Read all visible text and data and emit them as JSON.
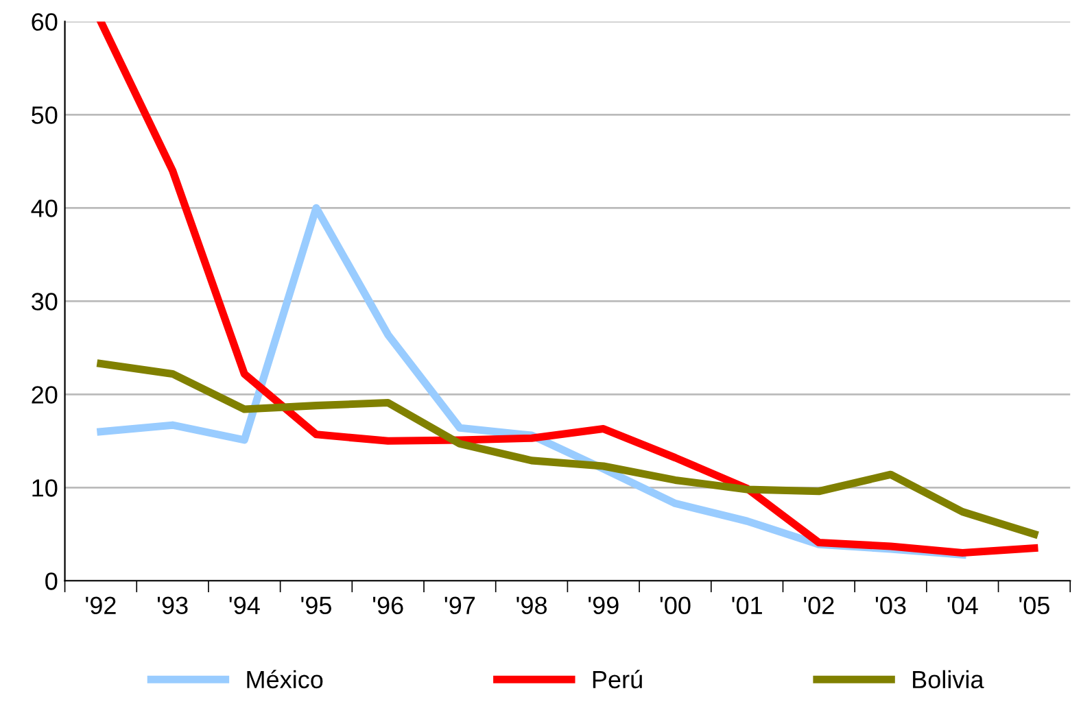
{
  "chart_data": {
    "type": "line",
    "categories": [
      "'92",
      "'93",
      "'94",
      "'95",
      "'96",
      "'97",
      "'98",
      "'99",
      "'00",
      "'01",
      "'02",
      "'03",
      "'04",
      "'05"
    ],
    "series": [
      {
        "name": "México",
        "color": "#99ccff",
        "values": [
          16.0,
          16.7,
          15.1,
          40.0,
          26.4,
          16.4,
          15.6,
          12.0,
          8.3,
          6.4,
          3.9,
          3.4,
          2.8,
          null
        ]
      },
      {
        "name": "Perú",
        "color": "#ff0000",
        "values": [
          60.0,
          44.0,
          22.2,
          15.7,
          15.0,
          15.1,
          15.3,
          16.3,
          13.2,
          9.9,
          4.1,
          3.7,
          3.0,
          3.5
        ]
      },
      {
        "name": "Bolivia",
        "color": "#808000",
        "values": [
          23.3,
          22.2,
          18.4,
          18.8,
          19.1,
          14.7,
          12.9,
          12.3,
          10.8,
          9.8,
          9.6,
          11.4,
          7.4,
          5.0
        ]
      }
    ],
    "ylim": [
      0,
      60
    ],
    "yticks": [
      0,
      10,
      20,
      30,
      40,
      50,
      60
    ],
    "grid": "y",
    "legend": "bottom",
    "marker": "none",
    "line_style": "solid"
  }
}
